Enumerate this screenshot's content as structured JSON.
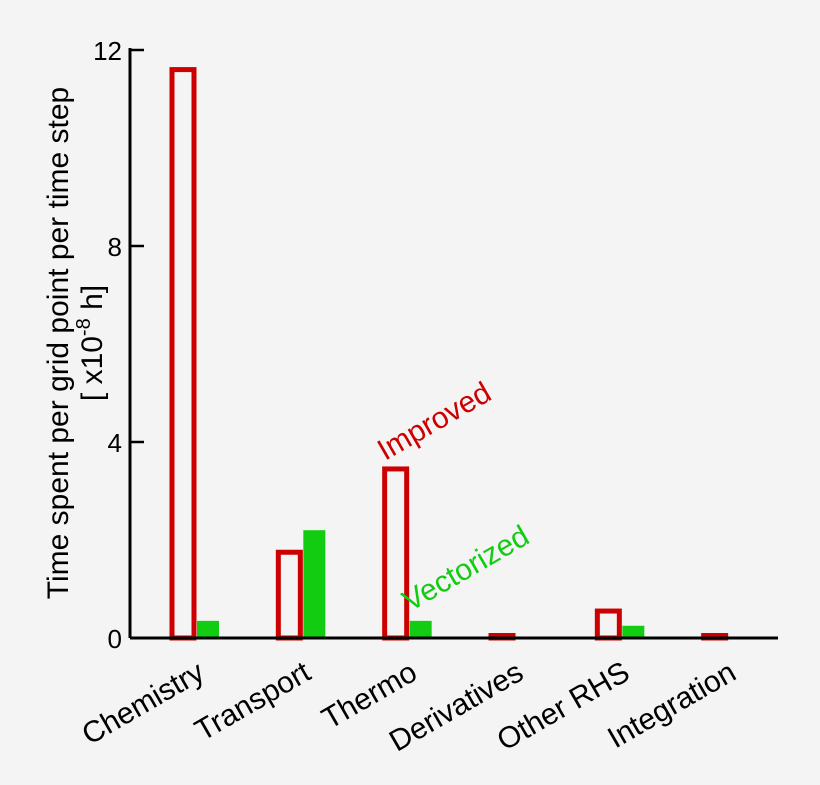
{
  "chart_data": {
    "type": "bar",
    "categories": [
      "Chemistry",
      "Transport",
      "Thermo",
      "Derivatives",
      "Other RHS",
      "Integration"
    ],
    "series": [
      {
        "name": "Improved",
        "values": [
          11.6,
          1.75,
          3.45,
          0.02,
          0.55,
          0.01
        ]
      },
      {
        "name": "Vectorized",
        "values": [
          0.35,
          2.2,
          0.35,
          0.03,
          0.25,
          0.0
        ]
      }
    ],
    "ylabel_line1": "Time spent per grid point per time step",
    "ylabel_line2_prefix": "[ x10",
    "ylabel_line2_exp": "-8",
    "ylabel_line2_suffix": " h]",
    "yticks": [
      "0",
      "4",
      "8",
      "12"
    ],
    "ytick_values": [
      0,
      4,
      8,
      12
    ],
    "ylim": [
      0,
      12
    ],
    "grid": false,
    "colors": {
      "improved": "#cc0000",
      "vectorized": "#11cc11",
      "axis": "#000000"
    }
  }
}
